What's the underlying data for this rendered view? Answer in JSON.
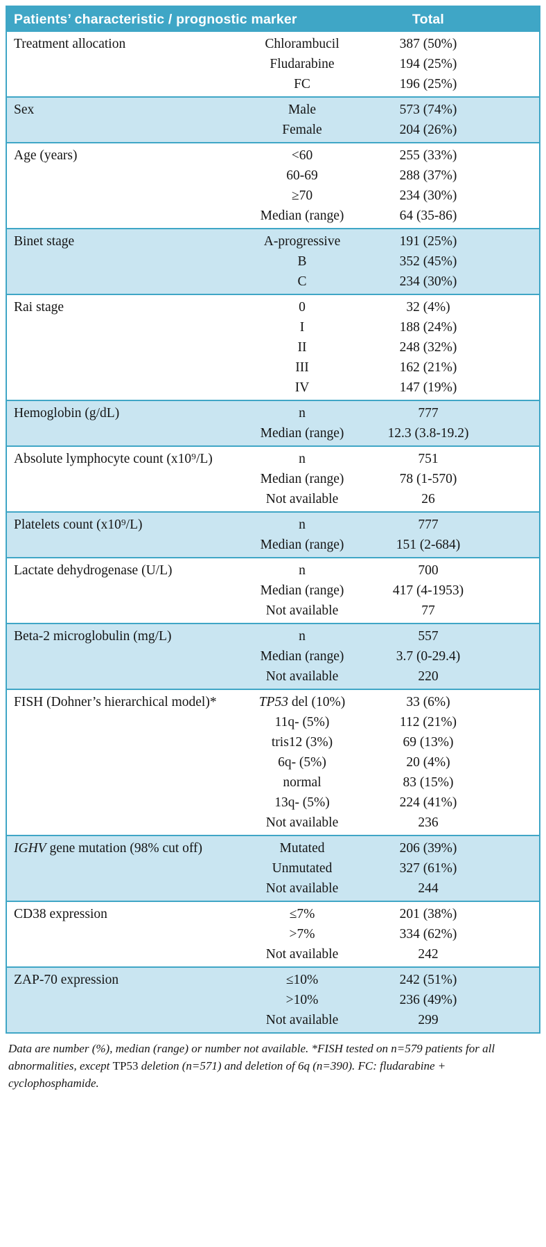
{
  "colors": {
    "header_bg": "#3fa6c6",
    "header_text": "#ffffff",
    "row_alt_bg": "#c9e5f1",
    "row_bg": "#ffffff",
    "border": "#3fa6c6",
    "text": "#151515"
  },
  "table": {
    "header": {
      "characteristic_label": "Patients’ characteristic / prognostic marker",
      "total_label": "Total"
    },
    "groups": [
      {
        "name": "Treatment allocation",
        "rows": [
          {
            "label": "Chlorambucil",
            "value": "387 (50%)"
          },
          {
            "label": "Fludarabine",
            "value": "194 (25%)"
          },
          {
            "label": "FC",
            "value": "196 (25%)"
          }
        ]
      },
      {
        "name": "Sex",
        "rows": [
          {
            "label": "Male",
            "value": "573 (74%)"
          },
          {
            "label": "Female",
            "value": "204 (26%)"
          }
        ]
      },
      {
        "name": "Age (years)",
        "rows": [
          {
            "label": "<60",
            "value": "255 (33%)"
          },
          {
            "label": "60-69",
            "value": "288 (37%)"
          },
          {
            "label": "≥70",
            "value": "234 (30%)"
          },
          {
            "label": "Median (range)",
            "value": "64 (35-86)"
          }
        ]
      },
      {
        "name": "Binet stage",
        "rows": [
          {
            "label": "A-progressive",
            "value": "191 (25%)"
          },
          {
            "label": "B",
            "value": "352 (45%)"
          },
          {
            "label": "C",
            "value": "234 (30%)"
          }
        ]
      },
      {
        "name": "Rai stage",
        "rows": [
          {
            "label": "0",
            "value": "32 (4%)"
          },
          {
            "label": "I",
            "value": "188 (24%)"
          },
          {
            "label": "II",
            "value": "248 (32%)"
          },
          {
            "label": "III",
            "value": "162 (21%)"
          },
          {
            "label": "IV",
            "value": "147 (19%)"
          }
        ]
      },
      {
        "name": "Hemoglobin (g/dL)",
        "rows": [
          {
            "label": "n",
            "value": "777"
          },
          {
            "label": "Median (range)",
            "value": "12.3 (3.8-19.2)"
          }
        ]
      },
      {
        "name": "Absolute lymphocyte count (x10⁹/L)",
        "rows": [
          {
            "label": "n",
            "value": "751"
          },
          {
            "label": "Median (range)",
            "value": "78 (1-570)"
          },
          {
            "label": "Not available",
            "value": "26"
          }
        ]
      },
      {
        "name": "Platelets count (x10⁹/L)",
        "rows": [
          {
            "label": "n",
            "value": "777"
          },
          {
            "label": "Median (range)",
            "value": "151 (2-684)"
          }
        ]
      },
      {
        "name": "Lactate dehydrogenase (U/L)",
        "rows": [
          {
            "label": "n",
            "value": "700"
          },
          {
            "label": "Median (range)",
            "value": "417 (4-1953)"
          },
          {
            "label": "Not available",
            "value": "77"
          }
        ]
      },
      {
        "name": "Beta-2 microglobulin (mg/L)",
        "rows": [
          {
            "label": "n",
            "value": "557"
          },
          {
            "label": "Median (range)",
            "value": "3.7 (0-29.4)"
          },
          {
            "label": "Not available",
            "value": "220"
          }
        ]
      },
      {
        "name": "FISH (Dohner’s hierarchical model)*",
        "rows": [
          {
            "label_italic": "TP53",
            "label_rest": " del (10%)",
            "value": "33 (6%)"
          },
          {
            "label": "11q- (5%)",
            "value": "112 (21%)"
          },
          {
            "label": "tris12 (3%)",
            "value": "69 (13%)"
          },
          {
            "label": "6q- (5%)",
            "value": "20 (4%)"
          },
          {
            "label": "normal",
            "value": "83 (15%)"
          },
          {
            "label": "13q- (5%)",
            "value": "224 (41%)"
          },
          {
            "label": "Not available",
            "value": "236"
          }
        ]
      },
      {
        "name_italic": "IGHV",
        "name_rest": " gene mutation (98% cut off)",
        "rows": [
          {
            "label": "Mutated",
            "value": "206 (39%)"
          },
          {
            "label": "Unmutated",
            "value": "327 (61%)"
          },
          {
            "label": "Not available",
            "value": "244"
          }
        ]
      },
      {
        "name": "CD38 expression",
        "rows": [
          {
            "label": "≤7%",
            "value": "201 (38%)"
          },
          {
            "label": ">7%",
            "value": "334 (62%)"
          },
          {
            "label": "Not available",
            "value": "242"
          }
        ]
      },
      {
        "name": "ZAP-70 expression",
        "rows": [
          {
            "label": "≤10%",
            "value": "242 (51%)"
          },
          {
            "label": ">10%",
            "value": "236 (49%)"
          },
          {
            "label": "Not available",
            "value": "299"
          }
        ]
      }
    ],
    "footnote_parts": [
      {
        "text": "Data are number (%), median (range) or number not available. *FISH tested on n=579 patients for all abnormalities, except ",
        "italic": true
      },
      {
        "text": "TP53",
        "italic": false
      },
      {
        "text": " deletion (n=571) and deletion of 6q (n=390). FC: fludarabine + cyclophosphamide.",
        "italic": true
      }
    ]
  }
}
